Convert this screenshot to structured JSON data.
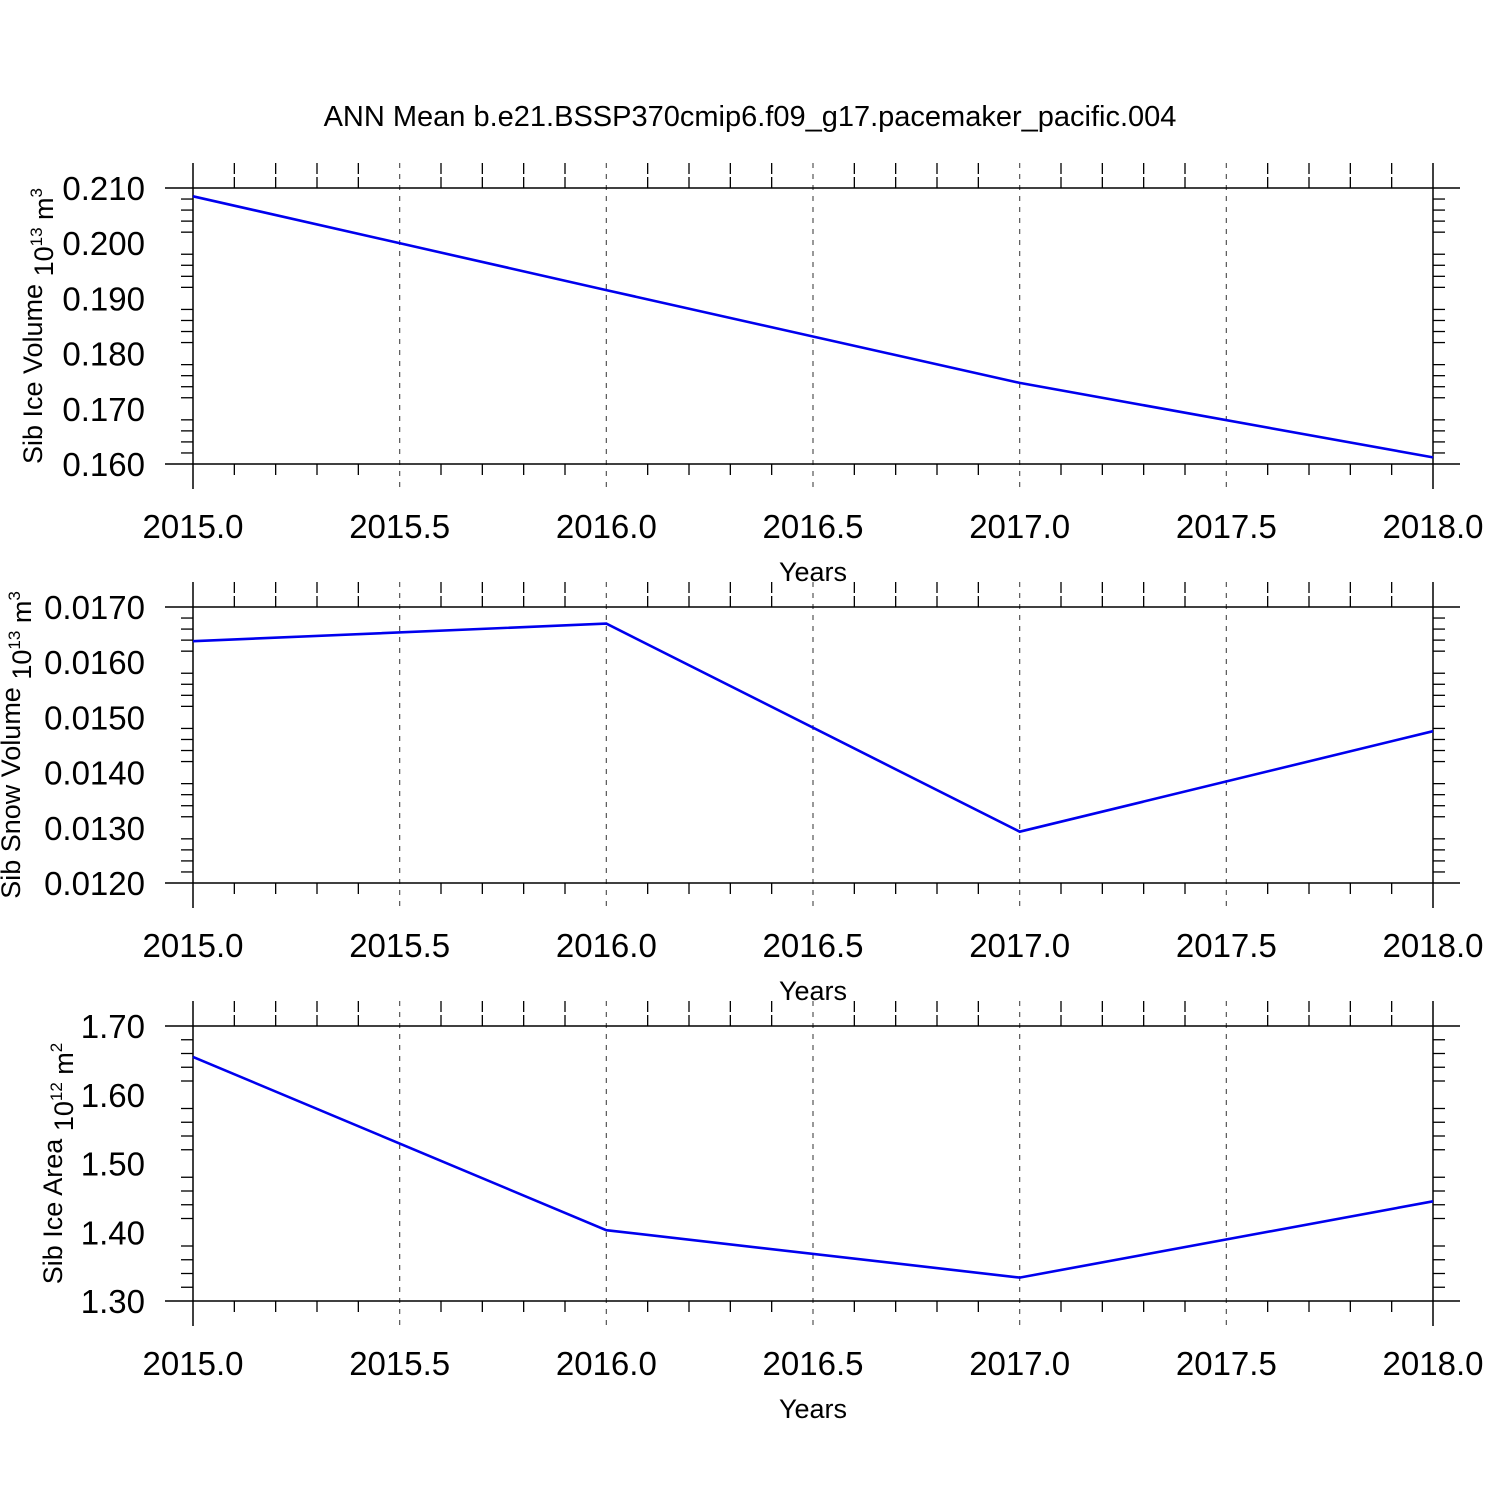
{
  "title": "ANN Mean b.e21.BSSP370cmip6.f09_g17.pacemaker_pacific.004",
  "colors": {
    "line": "#0000ee",
    "frame": "#000000",
    "grid": "#555555"
  },
  "chart_data": [
    {
      "type": "line",
      "xlabel": "Years",
      "ylabel": "Sib Ice Volume",
      "ylabel_unit_base": "10",
      "ylabel_unit_exp": "13",
      "ylabel_unit": "m",
      "ylabel_unit_pow": "3",
      "xlim": [
        2015.0,
        2018.0
      ],
      "ylim": [
        0.16,
        0.21
      ],
      "x_ticks": [
        "2015.0",
        "2015.5",
        "2016.0",
        "2016.5",
        "2017.0",
        "2017.5",
        "2018.0"
      ],
      "y_ticks": [
        "0.160",
        "0.170",
        "0.180",
        "0.190",
        "0.200",
        "0.210"
      ],
      "grid": "vertical dashed",
      "x": [
        2015,
        2016,
        2017,
        2018
      ],
      "y": [
        0.2085,
        0.1915,
        0.1747,
        0.1612
      ]
    },
    {
      "type": "line",
      "xlabel": "Years",
      "ylabel": "Sib Snow Volume",
      "ylabel_unit_base": "10",
      "ylabel_unit_exp": "13",
      "ylabel_unit": "m",
      "ylabel_unit_pow": "3",
      "xlim": [
        2015.0,
        2018.0
      ],
      "ylim": [
        0.012,
        0.017
      ],
      "x_ticks": [
        "2015.0",
        "2015.5",
        "2016.0",
        "2016.5",
        "2017.0",
        "2017.5",
        "2018.0"
      ],
      "y_ticks": [
        "0.0120",
        "0.0130",
        "0.0140",
        "0.0150",
        "0.0160",
        "0.0170"
      ],
      "grid": "vertical dashed",
      "x": [
        2015,
        2016,
        2017,
        2018
      ],
      "y": [
        0.01638,
        0.0167,
        0.01293,
        0.01475
      ]
    },
    {
      "type": "line",
      "xlabel": "Years",
      "ylabel": "Sib Ice Area",
      "ylabel_unit_base": "10",
      "ylabel_unit_exp": "12",
      "ylabel_unit": "m",
      "ylabel_unit_pow": "2",
      "xlim": [
        2015.0,
        2018.0
      ],
      "ylim": [
        1.3,
        1.7
      ],
      "x_ticks": [
        "2015.0",
        "2015.5",
        "2016.0",
        "2016.5",
        "2017.0",
        "2017.5",
        "2018.0"
      ],
      "y_ticks": [
        "1.30",
        "1.40",
        "1.50",
        "1.60",
        "1.70"
      ],
      "grid": "vertical dashed",
      "x": [
        2015,
        2016,
        2017,
        2018
      ],
      "y": [
        1.655,
        1.403,
        1.334,
        1.445
      ]
    }
  ]
}
